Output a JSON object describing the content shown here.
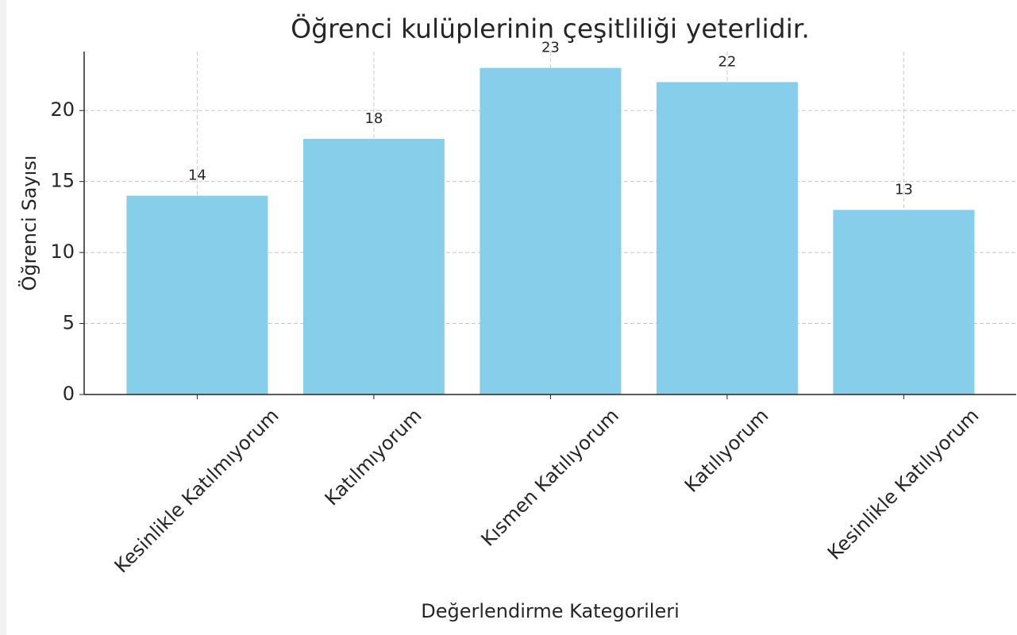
{
  "chart_data": {
    "type": "bar",
    "title": "Öğrenci kulüplerinin çeşitliliği yeterlidir.",
    "xlabel": "Değerlendirme Kategorileri",
    "ylabel": "Öğrenci Sayısı",
    "categories": [
      "Kesinlikle Katılmıyorum",
      "Katılmıyorum",
      "Kısmen Katılıyorum",
      "Katılıyorum",
      "Kesinlikle Katılıyorum"
    ],
    "values": [
      14,
      18,
      23,
      22,
      13
    ],
    "color": "#87ceeb",
    "ylim": [
      0,
      24.15
    ],
    "yticks": [
      0,
      5,
      10,
      15,
      20
    ],
    "grid": true
  }
}
